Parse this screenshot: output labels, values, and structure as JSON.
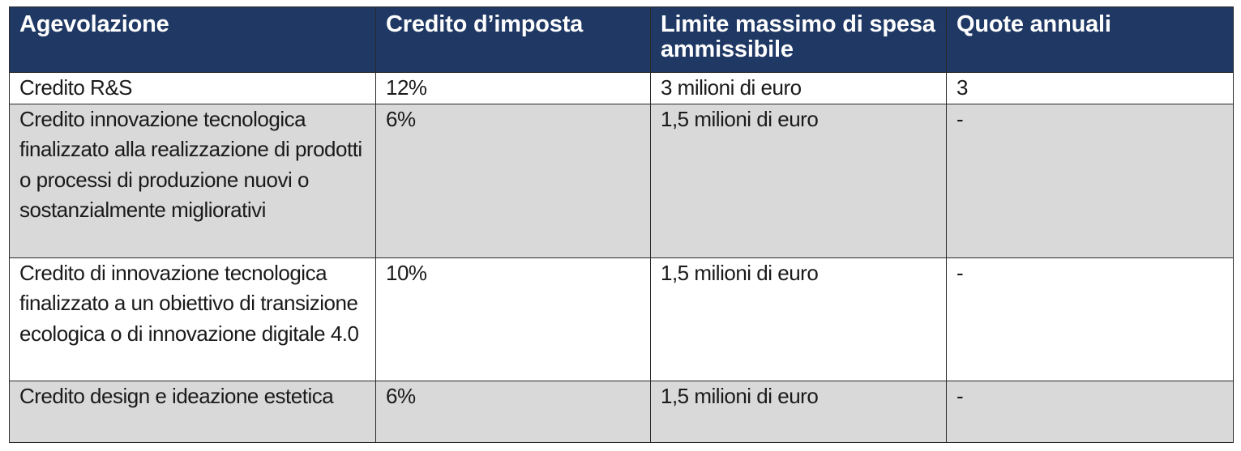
{
  "table": {
    "headers": [
      "Agevolazione",
      "Credito d’imposta",
      "Limite massimo di spesa ammissibile",
      "Quote annuali"
    ],
    "rows": [
      {
        "agevolazione": "Credito R&S",
        "credito": "12%",
        "limite": "3 milioni di euro",
        "quote": "3"
      },
      {
        "agevolazione": "Credito innovazione tecnologica finalizzato alla realizzazione di prodotti o processi di produzione nuovi o sostanzialmente migliorativi",
        "credito": "6%",
        "limite": "1,5 milioni di euro",
        "quote": "-"
      },
      {
        "agevolazione": "Credito di innovazione tecnologica finalizzato a un obiettivo di transizione ecologica o di innovazione digitale 4.0",
        "credito": "10%",
        "limite": "1,5 milioni di euro",
        "quote": "-"
      },
      {
        "agevolazione": "Credito design e ideazione estetica",
        "credito": "6%",
        "limite": "1,5 milioni di euro",
        "quote": "-"
      }
    ]
  },
  "colors": {
    "header_background": "#1f3864",
    "header_text": "#ffffff",
    "shaded_row": "#d9d9d9",
    "plain_row": "#ffffff",
    "border": "#2a2a2a"
  }
}
